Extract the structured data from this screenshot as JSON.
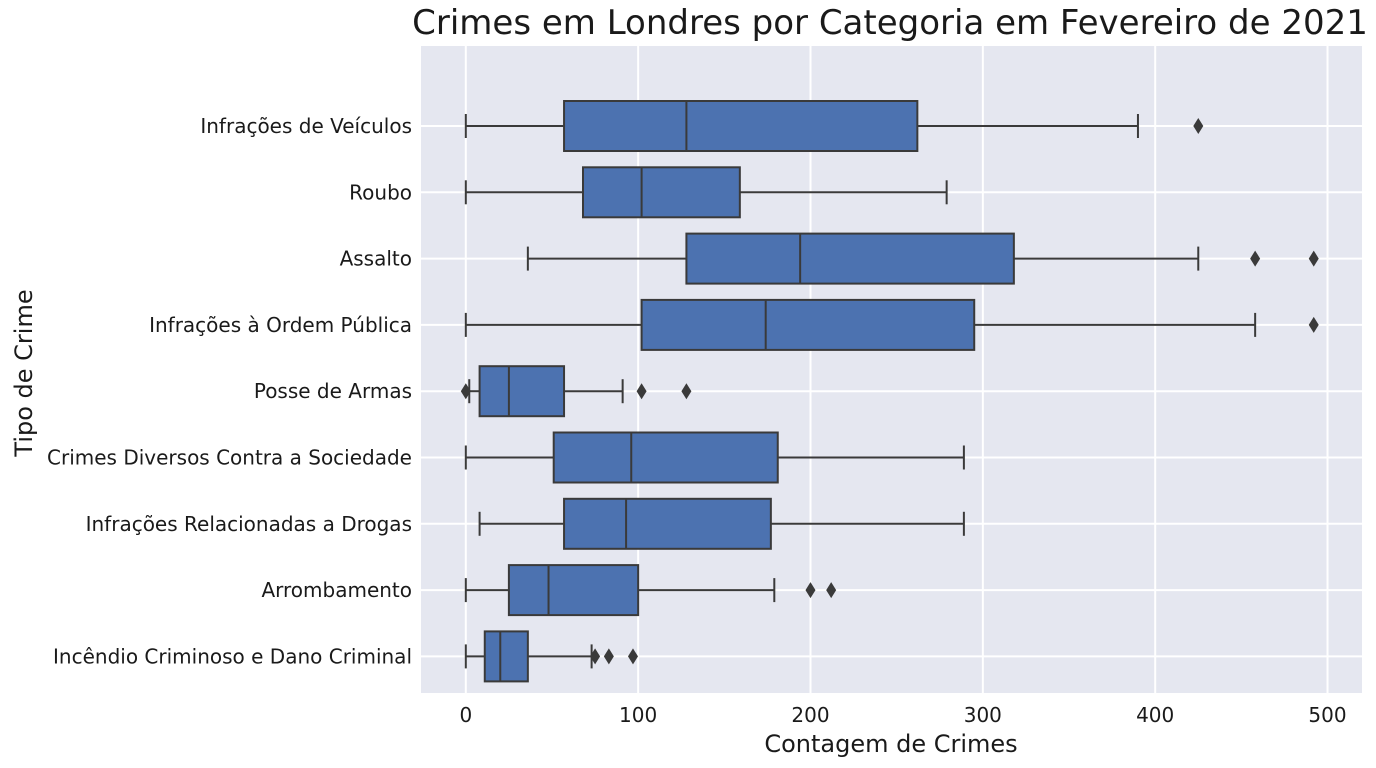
{
  "chart_data": {
    "type": "boxplot",
    "title": "Crimes em Londres por Categoria em Fevereiro de 2021",
    "xlabel": "Contagem de Crimes",
    "ylabel": "Tipo de Crime",
    "xlim": [
      -26,
      520
    ],
    "xticks": [
      0,
      100,
      200,
      300,
      400,
      500
    ],
    "grid": true,
    "orientation": "horizontal",
    "box_color": "#4c72b0",
    "edge_color": "#3a3a3a",
    "background_color": "#e5e7f0",
    "categories": [
      "Infrações de Veículos",
      "Roubo",
      "Assalto",
      "Infrações à Ordem Pública",
      "Posse de Armas",
      "Crimes Diversos Contra a Sociedade",
      "Infrações Relacionadas a Drogas",
      "Arrombamento",
      "Incêndio Criminoso e Dano Criminal"
    ],
    "boxes": [
      {
        "whisker_low": 0,
        "q1": 57,
        "median": 128,
        "q3": 262,
        "whisker_high": 390,
        "outliers": [
          425
        ]
      },
      {
        "whisker_low": 0,
        "q1": 68,
        "median": 102,
        "q3": 159,
        "whisker_high": 279,
        "outliers": []
      },
      {
        "whisker_low": 36,
        "q1": 128,
        "median": 194,
        "q3": 318,
        "whisker_high": 425,
        "outliers": [
          458,
          492
        ]
      },
      {
        "whisker_low": 0,
        "q1": 102,
        "median": 174,
        "q3": 295,
        "whisker_high": 458,
        "outliers": [
          492
        ]
      },
      {
        "whisker_low": 2,
        "q1": 8,
        "median": 25,
        "q3": 57,
        "whisker_high": 91,
        "outliers": [
          0,
          102,
          128
        ]
      },
      {
        "whisker_low": 0,
        "q1": 51,
        "median": 96,
        "q3": 181,
        "whisker_high": 289,
        "outliers": []
      },
      {
        "whisker_low": 8,
        "q1": 57,
        "median": 93,
        "q3": 177,
        "whisker_high": 289,
        "outliers": []
      },
      {
        "whisker_low": 0,
        "q1": 25,
        "median": 48,
        "q3": 100,
        "whisker_high": 179,
        "outliers": [
          200,
          212
        ]
      },
      {
        "whisker_low": 0,
        "q1": 11,
        "median": 20,
        "q3": 36,
        "whisker_high": 73,
        "outliers": [
          75,
          83,
          97
        ]
      }
    ]
  }
}
